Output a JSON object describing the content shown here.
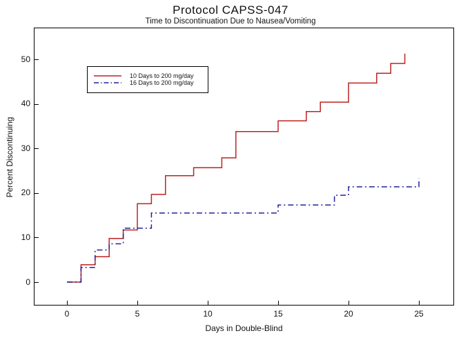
{
  "chart_data": {
    "type": "line",
    "subtype": "step-function-survival",
    "title": "Protocol CAPSS-047",
    "subtitle": "Time to Discontinuation Due to Nausea/Vomiting",
    "xlabel": "Days in Double-Blind",
    "ylabel": "Percent Discontinuing",
    "x_ticks": [
      0,
      5,
      10,
      15,
      20,
      25
    ],
    "y_ticks": [
      0,
      10,
      20,
      30,
      40,
      50
    ],
    "xlim": [
      0,
      27.5
    ],
    "ylim": [
      0,
      57
    ],
    "grid": false,
    "legend_position": "upper-left-inside",
    "frame": true,
    "axis_color": "#000000",
    "series": [
      {
        "name": "10 Days to 200 mg/day",
        "color": "#bb2222",
        "line_style": "solid",
        "steps_day_percent": [
          [
            0,
            0
          ],
          [
            1,
            3.9
          ],
          [
            2,
            5.7
          ],
          [
            3,
            9.8
          ],
          [
            4,
            11.7
          ],
          [
            5,
            17.6
          ],
          [
            6,
            19.7
          ],
          [
            7,
            23.9
          ],
          [
            9,
            25.7
          ],
          [
            11,
            27.9
          ],
          [
            12,
            33.8
          ],
          [
            15,
            36.2
          ],
          [
            17,
            38.3
          ],
          [
            18,
            40.4
          ],
          [
            20,
            44.7
          ],
          [
            22,
            46.9
          ],
          [
            23,
            49.1
          ],
          [
            24,
            51.3
          ]
        ]
      },
      {
        "name": "16 Days to 200 mg/day",
        "color": "#1f1f99",
        "line_style": "dash-dot",
        "steps_day_percent": [
          [
            0,
            0
          ],
          [
            1,
            3.3
          ],
          [
            2,
            7.2
          ],
          [
            3,
            8.6
          ],
          [
            4,
            12.1
          ],
          [
            6,
            15.5
          ],
          [
            15,
            17.3
          ],
          [
            19,
            19.5
          ],
          [
            20,
            21.4
          ],
          [
            25,
            23.3
          ]
        ]
      }
    ]
  }
}
